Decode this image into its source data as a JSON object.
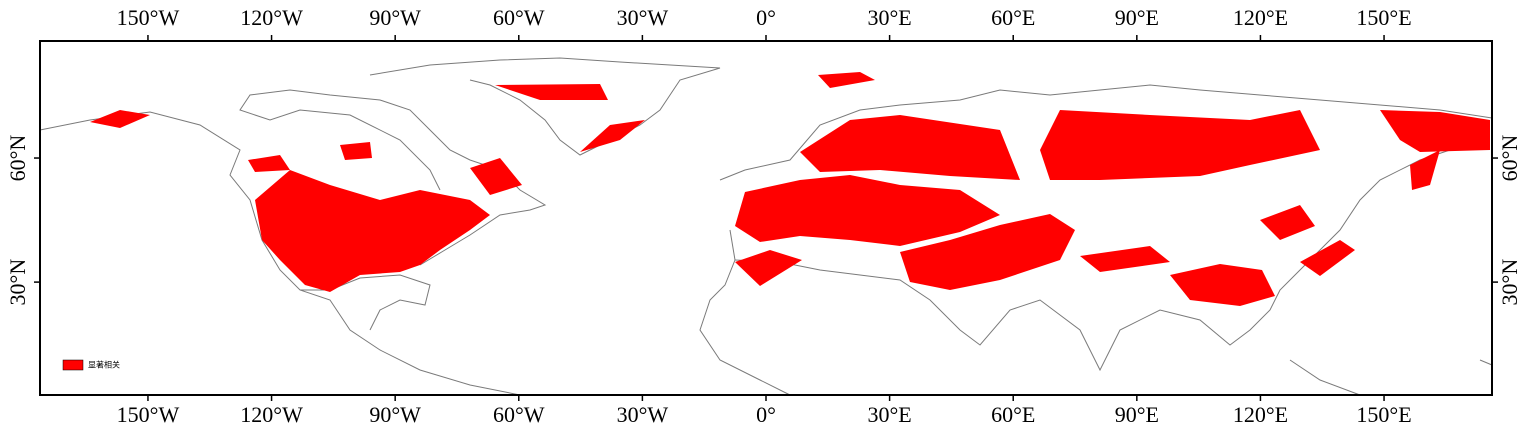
{
  "map": {
    "xlim": [
      -176.2,
      176.2
    ],
    "ylim": [
      2.7,
      88.3
    ],
    "xticks": [
      {
        "value": -150,
        "label": "150°W"
      },
      {
        "value": -120,
        "label": "120°W"
      },
      {
        "value": -90,
        "label": "90°W"
      },
      {
        "value": -60,
        "label": "60°W"
      },
      {
        "value": -30,
        "label": "30°W"
      },
      {
        "value": 0,
        "label": "0°"
      },
      {
        "value": 30,
        "label": "30°E"
      },
      {
        "value": 60,
        "label": "60°E"
      },
      {
        "value": 90,
        "label": "90°E"
      },
      {
        "value": 120,
        "label": "120°E"
      },
      {
        "value": 150,
        "label": "150°E"
      }
    ],
    "yticks": [
      {
        "value": 30,
        "label": "30°N"
      },
      {
        "value": 60,
        "label": "60°N"
      }
    ],
    "legend": {
      "label": "显著相关",
      "color": "#ff0000"
    }
  }
}
